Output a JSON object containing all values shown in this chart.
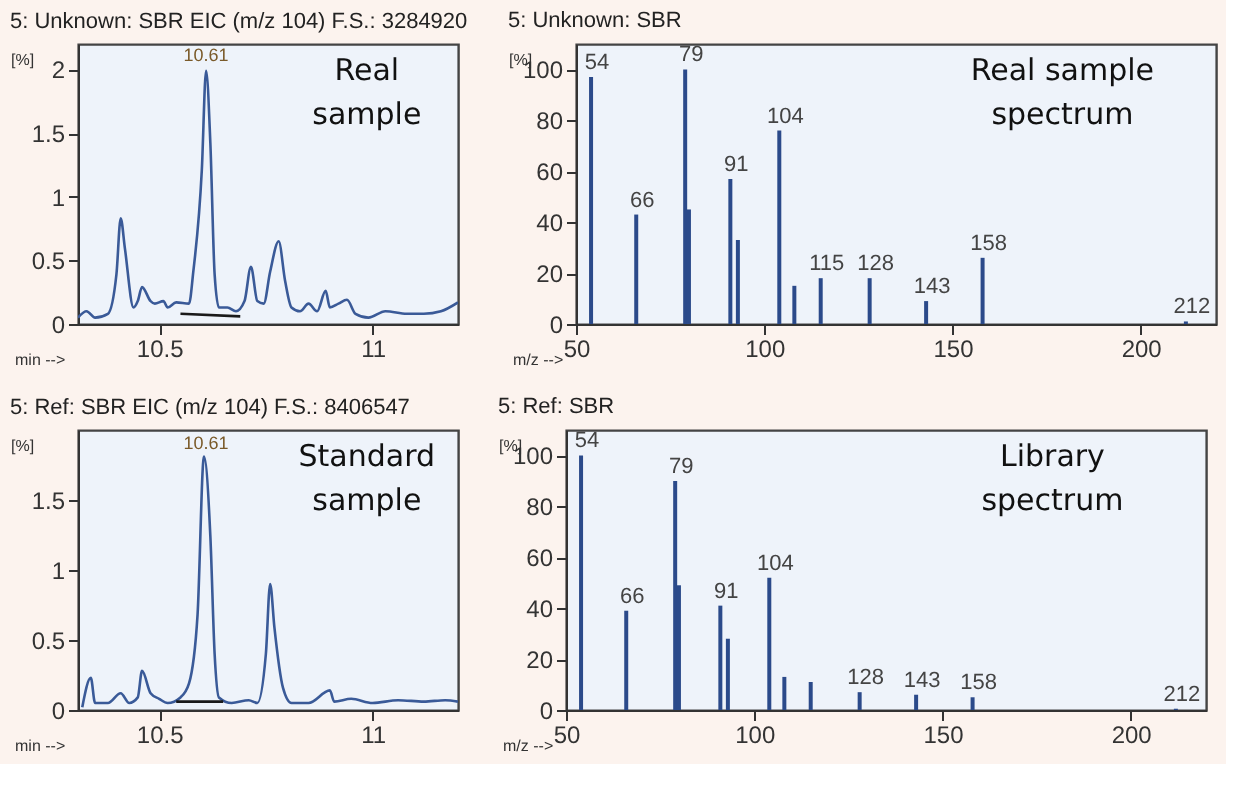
{
  "chart_data": [
    {
      "type": "line",
      "title": "5: Unknown: SBR EIC (m/z 104) F.S.: 3284920",
      "xlabel": "min -->",
      "ylabel": "[%]",
      "xlim": [
        10.31,
        11.2
      ],
      "ylim": [
        0,
        2.2
      ],
      "xticks": [
        10.5,
        11
      ],
      "yticks": [
        0,
        0.5,
        1,
        1.5,
        2
      ],
      "grid": false,
      "annotations": [
        {
          "text": "10.61",
          "x": 10.61,
          "y": 2.0
        },
        "Real\nsample"
      ],
      "series": [
        {
          "color": "#3a5a98",
          "x": [
            10.31,
            10.33,
            10.35,
            10.38,
            10.4,
            10.41,
            10.42,
            10.44,
            10.45,
            10.46,
            10.48,
            10.49,
            10.51,
            10.52,
            10.54,
            10.57,
            10.58,
            10.6,
            10.61,
            10.62,
            10.63,
            10.64,
            10.66,
            10.68,
            10.7,
            10.715,
            10.73,
            10.745,
            10.76,
            10.78,
            10.795,
            10.81,
            10.83,
            10.85,
            10.87,
            10.89,
            10.9,
            10.92,
            10.94,
            10.96,
            10.99,
            11.03,
            11.08,
            11.12,
            11.16,
            11.2
          ],
          "values": [
            0.05,
            0.1,
            0.05,
            0.08,
            0.39,
            0.83,
            0.59,
            0.13,
            0.18,
            0.29,
            0.18,
            0.16,
            0.18,
            0.13,
            0.17,
            0.16,
            0.41,
            1.21,
            1.99,
            1.42,
            0.39,
            0.13,
            0.13,
            0.1,
            0.18,
            0.45,
            0.18,
            0.16,
            0.41,
            0.65,
            0.34,
            0.13,
            0.1,
            0.16,
            0.1,
            0.26,
            0.13,
            0.16,
            0.19,
            0.08,
            0.05,
            0.1,
            0.08,
            0.08,
            0.1,
            0.17
          ]
        },
        {
          "color": "#1a1a1a",
          "x": [
            10.55,
            10.69
          ],
          "values": [
            0.08,
            0.06
          ]
        }
      ]
    },
    {
      "type": "bar",
      "title": "5: Unknown: SBR",
      "xlabel": "m/z -->",
      "ylabel": "[%]",
      "xlim": [
        50,
        220
      ],
      "ylim": [
        0,
        110
      ],
      "xticks": [
        50,
        100,
        150,
        200
      ],
      "yticks": [
        0,
        20,
        40,
        60,
        80,
        100
      ],
      "grid": false,
      "annotations": [
        "Real sample\nspectrum",
        {
          "text": "54",
          "x": 54,
          "y": 97
        },
        {
          "text": "66",
          "x": 66,
          "y": 43
        },
        {
          "text": "79",
          "x": 79,
          "y": 100
        },
        {
          "text": "91",
          "x": 91,
          "y": 57
        },
        {
          "text": "104",
          "x": 104,
          "y": 76
        },
        {
          "text": "115",
          "x": 115,
          "y": 18
        },
        {
          "text": "128",
          "x": 128,
          "y": 18
        },
        {
          "text": "143",
          "x": 143,
          "y": 9
        },
        {
          "text": "158",
          "x": 158,
          "y": 26
        },
        {
          "text": "212",
          "x": 212,
          "y": 1
        }
      ],
      "x": [
        54,
        66,
        79,
        80,
        91,
        93,
        104,
        108,
        115,
        128,
        143,
        158,
        212
      ],
      "series": [
        {
          "color": "#2b4a8a",
          "values": [
            97,
            43,
            100,
            45,
            57,
            33,
            76,
            15,
            18,
            18,
            9,
            26,
            1
          ]
        }
      ]
    },
    {
      "type": "line",
      "title": "5: Ref: SBR EIC (m/z 104) F.S.: 8406547",
      "xlabel": "min -->",
      "ylabel": "[%]",
      "xlim": [
        10.31,
        11.2
      ],
      "ylim": [
        0,
        2.0
      ],
      "xticks": [
        10.5,
        11
      ],
      "yticks": [
        0,
        0.5,
        1,
        1.5
      ],
      "grid": false,
      "annotations": [
        {
          "text": "10.61",
          "x": 10.61,
          "y": 1.81
        },
        "Standard\nsample"
      ],
      "series": [
        {
          "color": "#3a5a98",
          "x": [
            10.32,
            10.34,
            10.35,
            10.38,
            10.41,
            10.43,
            10.45,
            10.46,
            10.48,
            10.5,
            10.52,
            10.55,
            10.57,
            10.59,
            10.605,
            10.62,
            10.63,
            10.64,
            10.67,
            10.71,
            10.73,
            10.75,
            10.76,
            10.77,
            10.79,
            10.81,
            10.85,
            10.9,
            10.91,
            10.95,
            11.0,
            11.06,
            11.12,
            11.17,
            11.2
          ],
          "values": [
            0.02,
            0.23,
            0.05,
            0.05,
            0.12,
            0.05,
            0.09,
            0.28,
            0.12,
            0.08,
            0.05,
            0.09,
            0.19,
            0.68,
            1.81,
            1.24,
            0.4,
            0.09,
            0.05,
            0.07,
            0.05,
            0.4,
            0.9,
            0.59,
            0.16,
            0.05,
            0.05,
            0.14,
            0.06,
            0.08,
            0.05,
            0.07,
            0.06,
            0.07,
            0.06
          ]
        },
        {
          "color": "#1a1a1a",
          "x": [
            10.54,
            10.65
          ],
          "values": [
            0.06,
            0.06
          ]
        }
      ]
    },
    {
      "type": "bar",
      "title": "5: Ref: SBR",
      "xlabel": "m/z -->",
      "ylabel": "[%]",
      "xlim": [
        50,
        220
      ],
      "ylim": [
        0,
        110
      ],
      "xticks": [
        50,
        100,
        150,
        200
      ],
      "yticks": [
        0,
        20,
        40,
        60,
        80,
        100
      ],
      "grid": false,
      "annotations": [
        "Library\nspectrum",
        {
          "text": "54",
          "x": 54,
          "y": 100
        },
        {
          "text": "66",
          "x": 66,
          "y": 39
        },
        {
          "text": "79",
          "x": 79,
          "y": 90
        },
        {
          "text": "91",
          "x": 91,
          "y": 41
        },
        {
          "text": "104",
          "x": 104,
          "y": 52
        },
        {
          "text": "128",
          "x": 128,
          "y": 7
        },
        {
          "text": "143",
          "x": 143,
          "y": 6
        },
        {
          "text": "158",
          "x": 158,
          "y": 5
        },
        {
          "text": "212",
          "x": 212,
          "y": 0.5
        }
      ],
      "x": [
        54,
        66,
        79,
        80,
        91,
        93,
        104,
        108,
        115,
        128,
        143,
        158,
        212
      ],
      "series": [
        {
          "color": "#2b4a8a",
          "values": [
            100,
            39,
            90,
            49,
            41,
            28,
            52,
            13,
            11,
            7,
            6,
            5,
            0.5
          ]
        }
      ]
    }
  ]
}
